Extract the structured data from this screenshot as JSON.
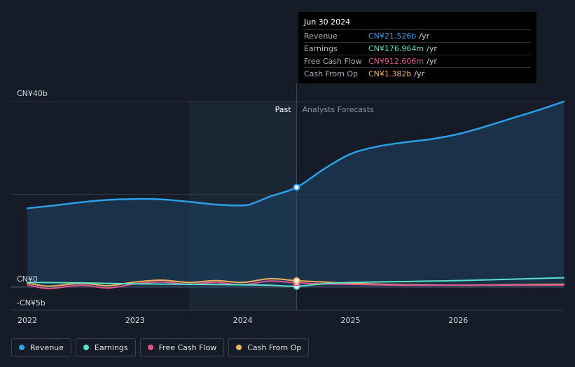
{
  "tooltip": {
    "date": "Jun 30 2024",
    "rows": [
      {
        "label": "Revenue",
        "value": "CN¥21.526b",
        "unit": "/yr",
        "color": "#2d9ee8"
      },
      {
        "label": "Earnings",
        "value": "CN¥176.964m",
        "unit": "/yr",
        "color": "#5de0c8"
      },
      {
        "label": "Free Cash Flow",
        "value": "CN¥912.606m",
        "unit": "/yr",
        "color": "#e0558f"
      },
      {
        "label": "Cash From Op",
        "value": "CN¥1.382b",
        "unit": "/yr",
        "color": "#f0b25a"
      }
    ]
  },
  "legend": [
    {
      "label": "Revenue",
      "color": "#2d9ee8"
    },
    {
      "label": "Earnings",
      "color": "#5de0c8"
    },
    {
      "label": "Free Cash Flow",
      "color": "#e0558f"
    },
    {
      "label": "Cash From Op",
      "color": "#f0b25a"
    }
  ],
  "chart_data": {
    "type": "line",
    "x_unit": "year",
    "xlim": [
      2021.85,
      2026.98
    ],
    "ylim": [
      -5,
      40
    ],
    "y_tick_labels": [
      {
        "value": 40,
        "label": "CN¥40b"
      },
      {
        "value": 0,
        "label": "CN¥0"
      },
      {
        "value": -5,
        "label": "-CN¥5b"
      }
    ],
    "x_ticks": [
      2022,
      2023,
      2024,
      2025,
      2026
    ],
    "x_tick_labels": [
      "2022",
      "2023",
      "2024",
      "2025",
      "2026"
    ],
    "gridlines": [
      40,
      20,
      0
    ],
    "past_label": "Past",
    "forecast_label": "Analysts Forecasts",
    "divider_x": 2024.5,
    "shade_start_x": 2023.5,
    "series": [
      {
        "name": "Revenue",
        "color": "#2d9ee8",
        "fill": true,
        "points": [
          [
            2022,
            17
          ],
          [
            2022.25,
            17.6
          ],
          [
            2022.5,
            18.3
          ],
          [
            2022.75,
            18.8
          ],
          [
            2023,
            19
          ],
          [
            2023.25,
            18.9
          ],
          [
            2023.5,
            18.4
          ],
          [
            2023.75,
            17.8
          ],
          [
            2024,
            17.6
          ],
          [
            2024.1,
            18.1
          ],
          [
            2024.25,
            19.5
          ],
          [
            2024.5,
            21.5
          ],
          [
            2024.75,
            25.4
          ],
          [
            2025,
            28.7
          ],
          [
            2025.25,
            30.3
          ],
          [
            2025.5,
            31.2
          ],
          [
            2025.75,
            31.9
          ],
          [
            2026,
            33
          ],
          [
            2026.25,
            34.6
          ],
          [
            2026.5,
            36.4
          ],
          [
            2026.75,
            38.2
          ],
          [
            2026.98,
            40
          ]
        ]
      },
      {
        "name": "Earnings",
        "color": "#5de0c8",
        "fill": false,
        "points": [
          [
            2022,
            1.0
          ],
          [
            2022.5,
            0.9
          ],
          [
            2023,
            0.7
          ],
          [
            2023.5,
            0.6
          ],
          [
            2024,
            0.5
          ],
          [
            2024.25,
            0.4
          ],
          [
            2024.5,
            0.18
          ],
          [
            2024.75,
            0.7
          ],
          [
            2025,
            1.0
          ],
          [
            2025.5,
            1.2
          ],
          [
            2026,
            1.4
          ],
          [
            2026.5,
            1.7
          ],
          [
            2026.98,
            2.0
          ]
        ]
      },
      {
        "name": "Free Cash Flow",
        "color": "#e0558f",
        "fill": false,
        "points": [
          [
            2022,
            0.5
          ],
          [
            2022.2,
            -0.3
          ],
          [
            2022.5,
            0.4
          ],
          [
            2022.75,
            -0.2
          ],
          [
            2023,
            0.7
          ],
          [
            2023.25,
            1.1
          ],
          [
            2023.5,
            0.6
          ],
          [
            2023.75,
            1.0
          ],
          [
            2024,
            0.5
          ],
          [
            2024.25,
            1.3
          ],
          [
            2024.5,
            0.91
          ],
          [
            2024.75,
            0.7
          ],
          [
            2025,
            0.6
          ],
          [
            2025.5,
            0.4
          ],
          [
            2026,
            0.4
          ],
          [
            2026.5,
            0.4
          ],
          [
            2026.98,
            0.45
          ]
        ]
      },
      {
        "name": "Cash From Op",
        "color": "#f0b25a",
        "fill": false,
        "points": [
          [
            2022,
            0.9
          ],
          [
            2022.2,
            0.2
          ],
          [
            2022.5,
            0.8
          ],
          [
            2022.75,
            0.3
          ],
          [
            2023,
            1.1
          ],
          [
            2023.25,
            1.5
          ],
          [
            2023.5,
            1.0
          ],
          [
            2023.75,
            1.4
          ],
          [
            2024,
            1.0
          ],
          [
            2024.25,
            1.8
          ],
          [
            2024.5,
            1.38
          ],
          [
            2024.75,
            1.1
          ],
          [
            2025,
            0.8
          ],
          [
            2025.5,
            0.5
          ],
          [
            2026,
            0.4
          ],
          [
            2026.5,
            0.5
          ],
          [
            2026.98,
            0.6
          ]
        ]
      }
    ],
    "highlight_x": 2024.5
  }
}
